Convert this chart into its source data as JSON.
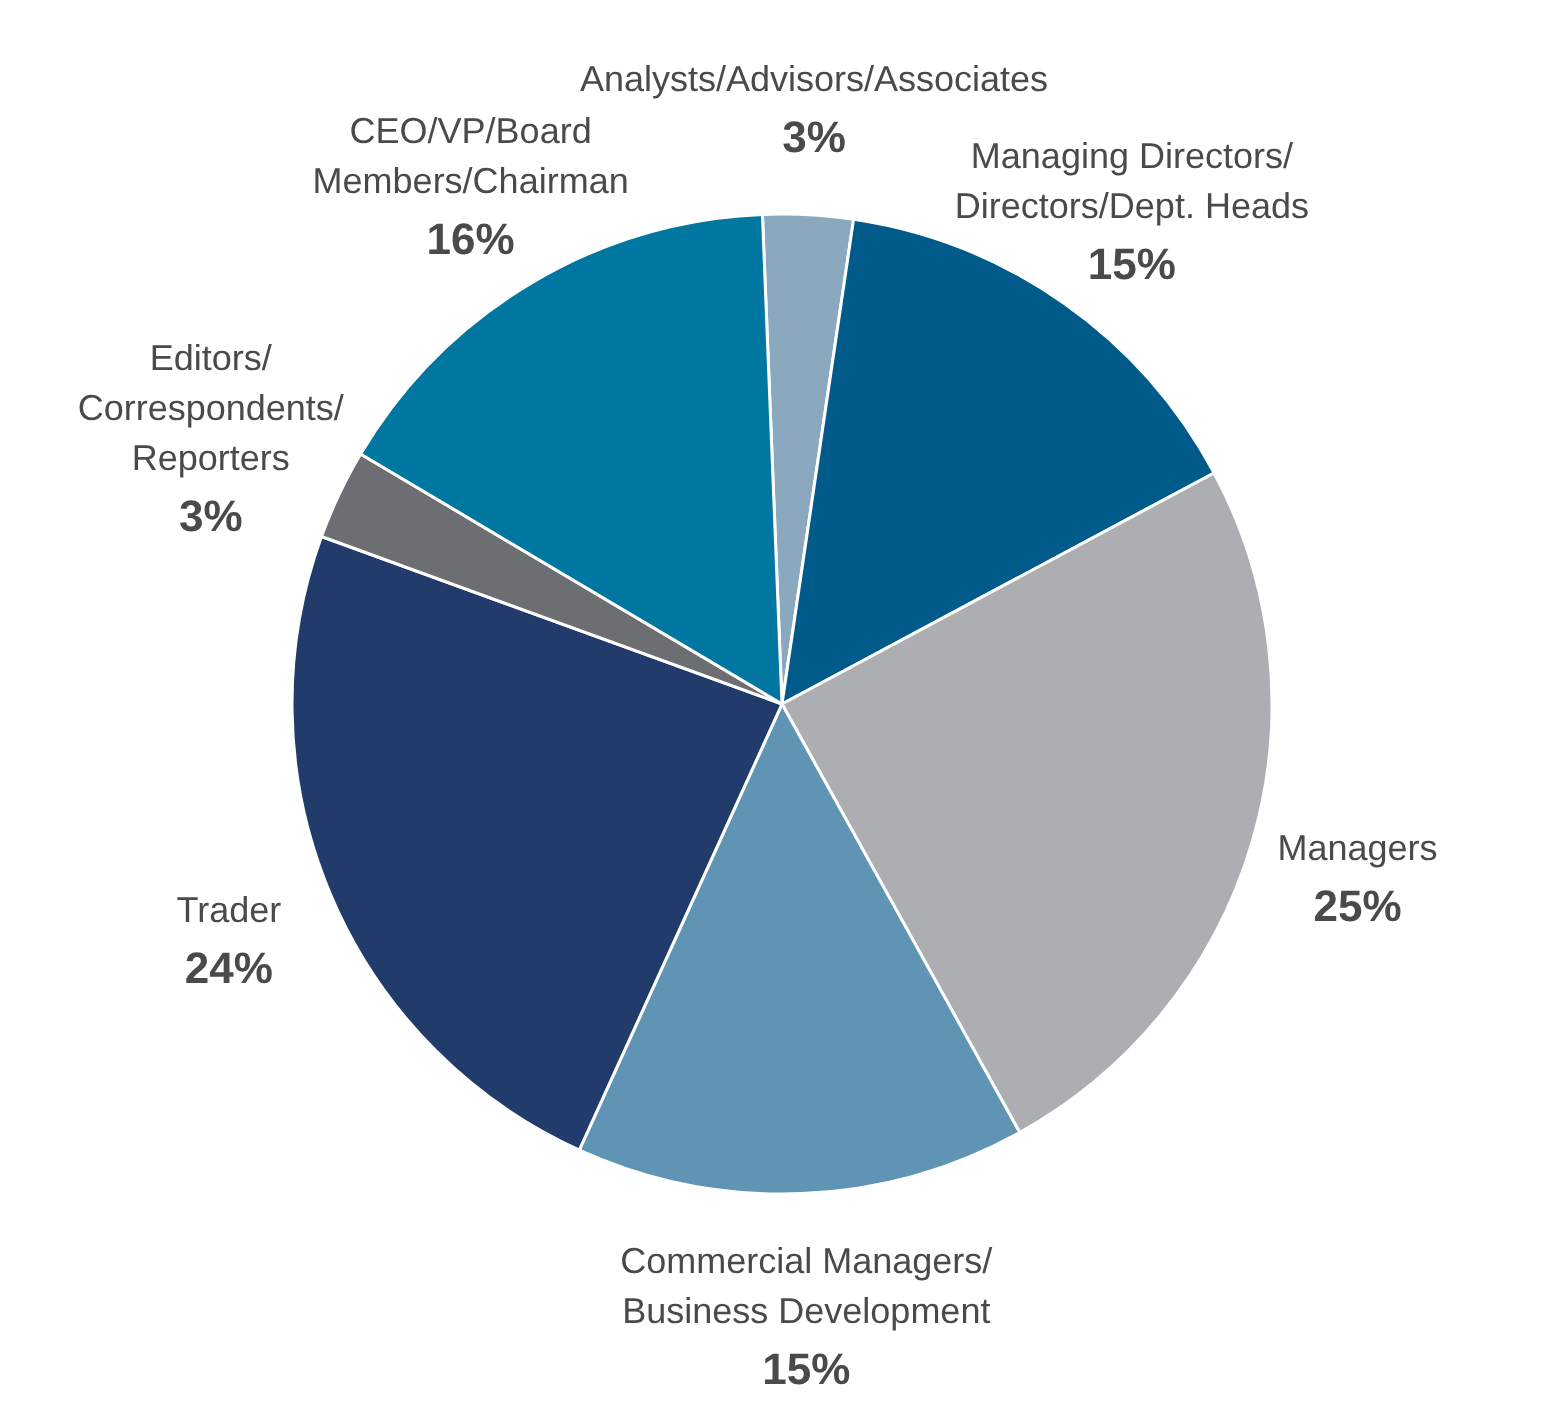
{
  "chart_data": {
    "type": "pie",
    "categories": [
      "Analysts/Advisors/Associates",
      "Managing Directors/\nDirectors/Dept. Heads",
      "Managers",
      "Commercial Managers/\nBusiness Development",
      "Trader",
      "Editors/\nCorrespondents/\nReporters",
      "CEO/VP/Board\nMembers/Chairman"
    ],
    "values": [
      3,
      15,
      25,
      15,
      24,
      3,
      16
    ],
    "value_labels": [
      "3%",
      "15%",
      "25%",
      "15%",
      "24%",
      "3%",
      "16%"
    ],
    "colors": [
      "#8aa9bf",
      "#005b8b",
      "#acaeb1",
      "#5f94b4",
      "#213b6a",
      "#6d6e71",
      "#0077a0"
    ]
  }
}
